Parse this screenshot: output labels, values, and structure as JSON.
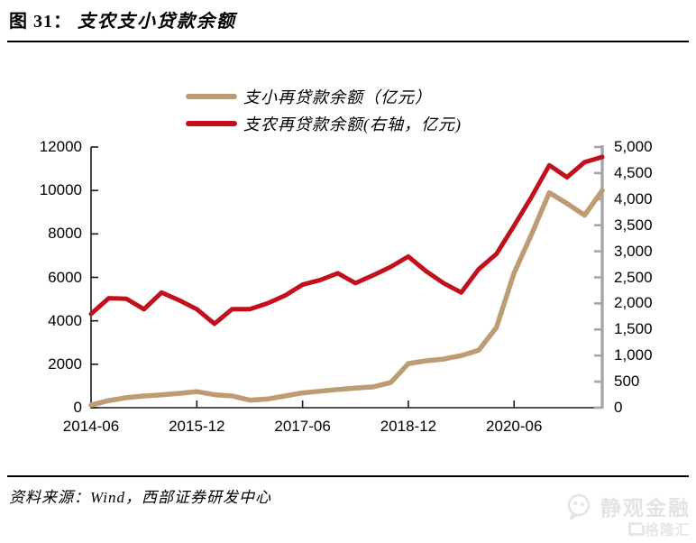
{
  "header": {
    "figure_label": "图 31：",
    "figure_title": "支农支小贷款余额"
  },
  "legend": [
    {
      "label": "支小再贷款余额（亿元）",
      "color": "#BE9C73",
      "series": "zhixiao"
    },
    {
      "label": "支农再贷款余额(右轴，亿元)",
      "color": "#C1101C",
      "series": "zhinong"
    }
  ],
  "axes": {
    "left_ticks": [
      "12000",
      "10000",
      "8000",
      "6000",
      "4000",
      "2000",
      "0"
    ],
    "right_ticks": [
      "5,000",
      "4,500",
      "4,000",
      "3,500",
      "3,000",
      "2,500",
      "2,000",
      "1,500",
      "1,000",
      "500",
      "0"
    ],
    "x_tick_labels": [
      "2014-06",
      "2015-12",
      "2017-06",
      "2018-12",
      "2020-06"
    ]
  },
  "footer": {
    "source": "资料来源：Wind，西部证券研发中心"
  },
  "watermark": {
    "account": "静观金融",
    "brand": "格隆汇"
  },
  "colors": {
    "line_zhixiao": "#BE9C73",
    "line_zhinong": "#C1101C",
    "axis_black": "#1a1a1a",
    "axis_right_gray": "#A6A6A6",
    "watermark_gray": "#e4e4e4"
  },
  "chart_data": {
    "type": "line",
    "x": [
      "2014-06",
      "2014-09",
      "2014-12",
      "2015-03",
      "2015-06",
      "2015-09",
      "2015-12",
      "2016-03",
      "2016-06",
      "2016-09",
      "2016-12",
      "2017-03",
      "2017-06",
      "2017-09",
      "2017-12",
      "2018-03",
      "2018-06",
      "2018-09",
      "2018-12",
      "2019-03",
      "2019-06",
      "2019-09",
      "2019-12",
      "2020-03",
      "2020-06",
      "2020-09",
      "2020-12",
      "2021-03",
      "2021-06",
      "2021-09"
    ],
    "series": [
      {
        "name": "支小再贷款余额（亿元）",
        "yaxis": "left",
        "color": "#BE9C73",
        "values": [
          120,
          330,
          460,
          540,
          590,
          660,
          740,
          600,
          540,
          350,
          400,
          540,
          680,
          760,
          840,
          900,
          960,
          1160,
          2030,
          2160,
          2240,
          2400,
          2650,
          3700,
          6200,
          8000,
          9900,
          9400,
          8860,
          10000
        ]
      },
      {
        "name": "支农再贷款余额(右轴，亿元)",
        "yaxis": "right",
        "color": "#C1101C",
        "values": [
          1800,
          2100,
          2090,
          1890,
          2210,
          2060,
          1890,
          1610,
          1890,
          1890,
          2000,
          2150,
          2360,
          2450,
          2580,
          2390,
          2540,
          2700,
          2900,
          2620,
          2390,
          2210,
          2660,
          2950,
          3490,
          4050,
          4650,
          4420,
          4710,
          4810
        ]
      }
    ],
    "left_ylim": [
      0,
      12000
    ],
    "right_ylim": [
      0,
      5000
    ],
    "left_tick_step": 2000,
    "right_tick_step": 500,
    "x_tick_labels": [
      "2014-06",
      "2015-12",
      "2017-06",
      "2018-12",
      "2020-06"
    ],
    "x_tick_indices": [
      0,
      6,
      12,
      18,
      24
    ],
    "grid": false,
    "legend_position": "top-center"
  }
}
